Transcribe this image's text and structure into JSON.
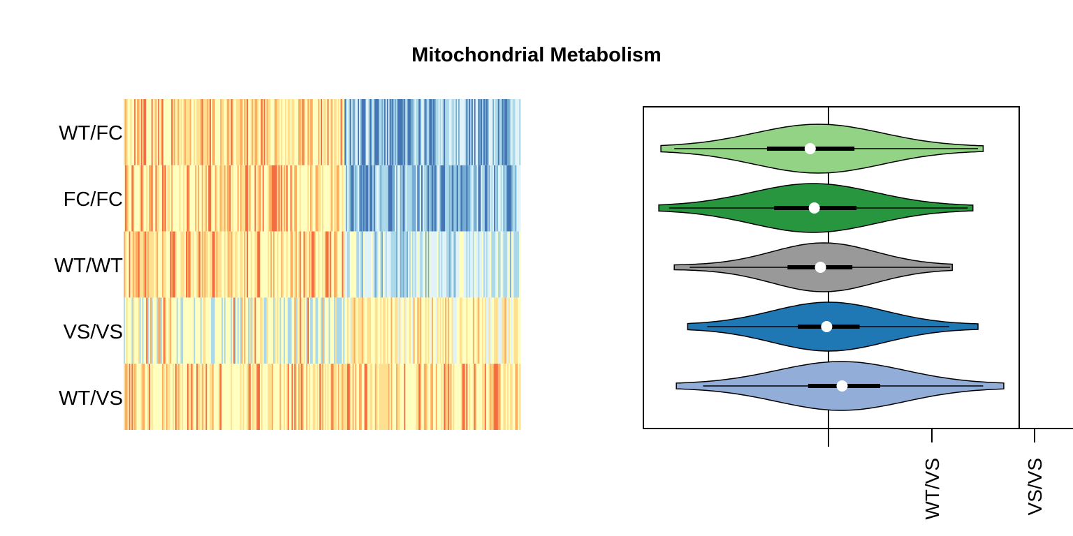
{
  "chart_data": [
    {
      "type": "heatmap",
      "title": "Mitochondrial Metabolism",
      "rows": [
        "WT/FC",
        "FC/FC",
        "WT/WT",
        "VS/VS",
        "WT/VS"
      ],
      "columns": 300,
      "color_scale": [
        "#d73027",
        "#f46d43",
        "#fdae61",
        "#fee090",
        "#ffffbf",
        "#e0f3f8",
        "#abd9e9",
        "#74add1",
        "#4575b4"
      ],
      "row_profiles": [
        {
          "row": "WT/FC",
          "first_half": "warm",
          "second_half": "cool"
        },
        {
          "row": "FC/FC",
          "first_half": "warm",
          "second_half": "cool"
        },
        {
          "row": "WT/WT",
          "first_half": "warm",
          "second_half": "light-cool"
        },
        {
          "row": "VS/VS",
          "first_half": "mixed",
          "second_half": "light-warm"
        },
        {
          "row": "WT/VS",
          "first_half": "warm",
          "second_half": "warm"
        }
      ]
    },
    {
      "type": "violin",
      "orientation": "horizontal",
      "x_tick_labels": [
        "WT/VS",
        "VS/VS"
      ],
      "reference_line": 0,
      "xlim": [
        -1.8,
        1.85
      ],
      "series": [
        {
          "group": "WT/FC",
          "color": "#92d385",
          "min": -1.63,
          "max": 1.5,
          "q1": -0.6,
          "median": -0.18,
          "q3": 0.25,
          "whisker_low": -1.5,
          "whisker_high": 1.45,
          "density_mode": -0.1,
          "density_sd": 0.62
        },
        {
          "group": "FC/FC",
          "color": "#27963f",
          "min": -1.65,
          "max": 1.4,
          "q1": -0.53,
          "median": -0.14,
          "q3": 0.27,
          "whisker_low": -1.55,
          "whisker_high": 1.35,
          "density_mode": -0.15,
          "density_sd": 0.6
        },
        {
          "group": "WT/WT",
          "color": "#999999",
          "min": -1.5,
          "max": 1.2,
          "q1": -0.4,
          "median": -0.08,
          "q3": 0.23,
          "whisker_low": -1.35,
          "whisker_high": 1.18,
          "density_mode": -0.05,
          "density_sd": 0.5
        },
        {
          "group": "VS/VS",
          "color": "#1f77b4",
          "min": -1.37,
          "max": 1.45,
          "q1": -0.3,
          "median": -0.02,
          "q3": 0.3,
          "whisker_low": -1.18,
          "whisker_high": 1.17,
          "density_mode": 0.0,
          "density_sd": 0.55
        },
        {
          "group": "WT/VS",
          "color": "#92add8",
          "min": -1.48,
          "max": 1.7,
          "q1": -0.2,
          "median": 0.13,
          "q3": 0.5,
          "whisker_low": -1.22,
          "whisker_high": 1.5,
          "density_mode": 0.12,
          "density_sd": 0.62
        }
      ]
    }
  ]
}
